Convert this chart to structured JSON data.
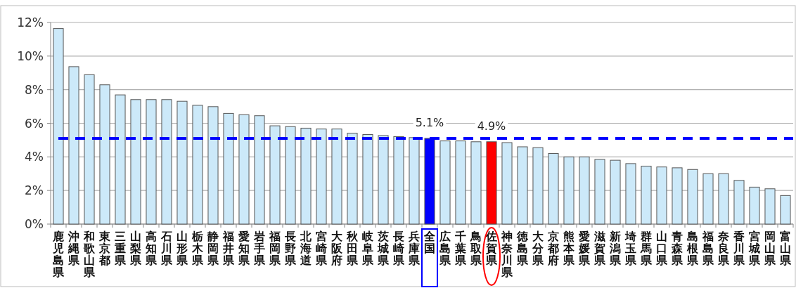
{
  "chart_data": {
    "type": "bar",
    "categories": [
      "鹿児島県",
      "沖縄県",
      "和歌山県",
      "東京都",
      "三重県",
      "山梨県",
      "高知県",
      "石川県",
      "山形県",
      "栃木県",
      "静岡県",
      "福井県",
      "愛知県",
      "岩手県",
      "福岡県",
      "長野県",
      "北海道",
      "宮崎県",
      "大阪府",
      "秋田県",
      "岐阜県",
      "茨城県",
      "長崎県",
      "兵庫県",
      "全国",
      "広島県",
      "千葉県",
      "鳥取県",
      "佐賀県",
      "神奈川県",
      "徳島県",
      "大分県",
      "京都府",
      "熊本県",
      "愛媛県",
      "滋賀県",
      "新潟県",
      "埼玉県",
      "群馬県",
      "山口県",
      "青森県",
      "島根県",
      "福島県",
      "奈良県",
      "香川県",
      "宮城県",
      "岡山県",
      "富山県"
    ],
    "values": [
      11.64,
      9.37,
      8.89,
      8.29,
      7.69,
      7.41,
      7.41,
      7.41,
      7.31,
      7.07,
      6.99,
      6.59,
      6.51,
      6.45,
      5.85,
      5.8,
      5.71,
      5.66,
      5.66,
      5.41,
      5.33,
      5.27,
      5.21,
      5.15,
      5.1,
      4.95,
      4.95,
      4.9,
      4.9,
      4.85,
      4.6,
      4.55,
      4.2,
      4.0,
      4.0,
      3.85,
      3.8,
      3.6,
      3.45,
      3.4,
      3.35,
      3.25,
      3.0,
      3.0,
      2.6,
      2.2,
      2.1,
      1.7
    ],
    "colors": [
      "#cce9f9",
      "#cce9f9",
      "#cce9f9",
      "#cce9f9",
      "#cce9f9",
      "#cce9f9",
      "#cce9f9",
      "#cce9f9",
      "#cce9f9",
      "#cce9f9",
      "#cce9f9",
      "#cce9f9",
      "#cce9f9",
      "#cce9f9",
      "#cce9f9",
      "#cce9f9",
      "#cce9f9",
      "#cce9f9",
      "#cce9f9",
      "#cce9f9",
      "#cce9f9",
      "#cce9f9",
      "#cce9f9",
      "#cce9f9",
      "#0000ff",
      "#cce9f9",
      "#cce9f9",
      "#cce9f9",
      "#ff0000",
      "#cce9f9",
      "#cce9f9",
      "#cce9f9",
      "#cce9f9",
      "#cce9f9",
      "#cce9f9",
      "#cce9f9",
      "#cce9f9",
      "#cce9f9",
      "#cce9f9",
      "#cce9f9",
      "#cce9f9",
      "#cce9f9",
      "#cce9f9",
      "#cce9f9",
      "#cce9f9",
      "#cce9f9",
      "#cce9f9",
      "#cce9f9"
    ],
    "value_labels": [
      null,
      null,
      null,
      null,
      null,
      null,
      null,
      null,
      null,
      null,
      null,
      null,
      null,
      null,
      null,
      null,
      null,
      null,
      null,
      null,
      null,
      null,
      null,
      null,
      "5.1%",
      null,
      null,
      null,
      "4.9%",
      null,
      null,
      null,
      null,
      null,
      null,
      null,
      null,
      null,
      null,
      null,
      null,
      null,
      null,
      null,
      null,
      null,
      null,
      null
    ],
    "ylim": [
      0,
      12
    ],
    "yticks": [
      {
        "value": 0,
        "label": "0%"
      },
      {
        "value": 2,
        "label": "2%"
      },
      {
        "value": 4,
        "label": "4%"
      },
      {
        "value": 6,
        "label": "6%"
      },
      {
        "value": 8,
        "label": "8%"
      },
      {
        "value": 10,
        "label": "10%"
      },
      {
        "value": 12,
        "label": "12%"
      }
    ],
    "grid": "y",
    "ref_lines": [
      {
        "axis": "y",
        "value": 5.1,
        "color": "#0000ff",
        "line_style": "dashed"
      }
    ]
  }
}
